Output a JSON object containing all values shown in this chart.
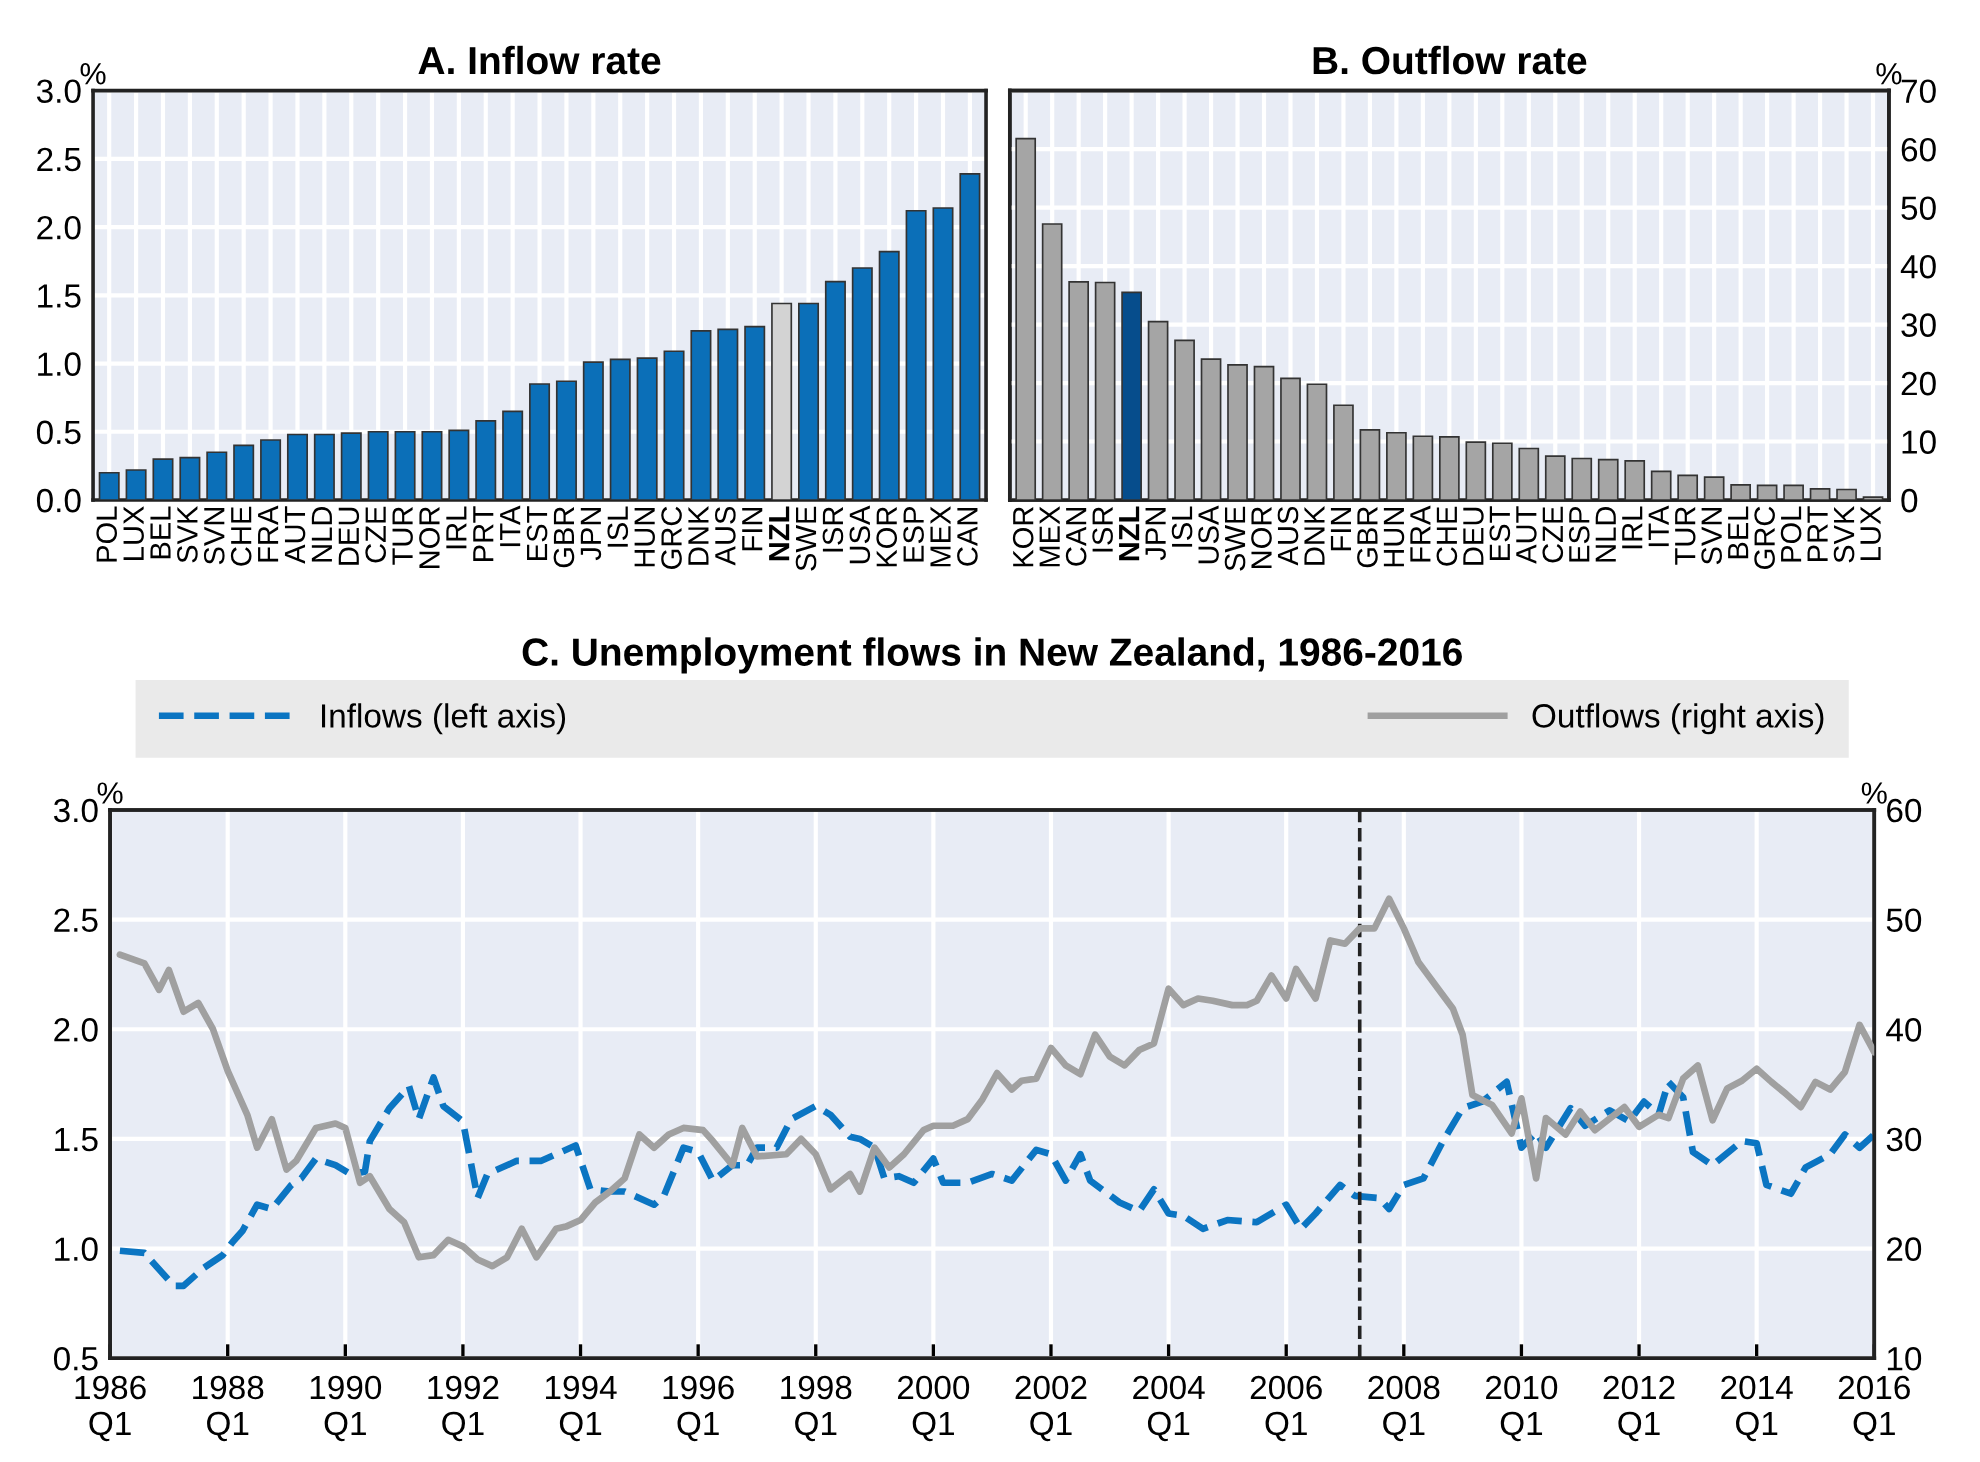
{
  "chart_data": [
    {
      "type": "bar",
      "title": "A. Inflow rate",
      "ylabel": "%",
      "grid": true,
      "categories": [
        "POL",
        "LUX",
        "BEL",
        "SVK",
        "SVN",
        "CHE",
        "FRA",
        "AUT",
        "NLD",
        "DEU",
        "CZE",
        "TUR",
        "NOR",
        "IRL",
        "PRT",
        "ITA",
        "EST",
        "GBR",
        "JPN",
        "ISL",
        "HUN",
        "GRC",
        "DNK",
        "AUS",
        "FIN",
        "NZL",
        "SWE",
        "ISR",
        "USA",
        "KOR",
        "ESP",
        "MEX",
        "CAN"
      ],
      "series": [
        {
          "values": [
            0.2,
            0.22,
            0.3,
            0.31,
            0.35,
            0.4,
            0.44,
            0.48,
            0.48,
            0.49,
            0.5,
            0.5,
            0.5,
            0.51,
            0.58,
            0.65,
            0.85,
            0.87,
            1.01,
            1.03,
            1.04,
            1.09,
            1.24,
            1.25,
            1.27,
            1.44,
            1.44,
            1.6,
            1.7,
            1.82,
            2.12,
            2.14,
            2.39
          ],
          "colors": [
            "#0b6fb8",
            "#0b6fb8",
            "#0b6fb8",
            "#0b6fb8",
            "#0b6fb8",
            "#0b6fb8",
            "#0b6fb8",
            "#0b6fb8",
            "#0b6fb8",
            "#0b6fb8",
            "#0b6fb8",
            "#0b6fb8",
            "#0b6fb8",
            "#0b6fb8",
            "#0b6fb8",
            "#0b6fb8",
            "#0b6fb8",
            "#0b6fb8",
            "#0b6fb8",
            "#0b6fb8",
            "#0b6fb8",
            "#0b6fb8",
            "#0b6fb8",
            "#0b6fb8",
            "#0b6fb8",
            "#d3d3d3",
            "#0b6fb8",
            "#0b6fb8",
            "#0b6fb8",
            "#0b6fb8",
            "#0b6fb8",
            "#0b6fb8",
            "#0b6fb8"
          ]
        }
      ],
      "ylim": [
        0,
        3
      ],
      "yticks": [
        {
          "value": 0,
          "label": "0.0"
        },
        {
          "value": 0.5,
          "label": "0.5"
        },
        {
          "value": 1,
          "label": "1.0"
        },
        {
          "value": 1.5,
          "label": "1.5"
        },
        {
          "value": 2,
          "label": "2.0"
        },
        {
          "value": 2.5,
          "label": "2.5"
        },
        {
          "value": 3,
          "label": "3.0"
        }
      ]
    },
    {
      "type": "bar",
      "title": "B. Outflow rate",
      "y2label": "%",
      "grid": true,
      "categories": [
        "KOR",
        "MEX",
        "CAN",
        "ISR",
        "NZL",
        "JPN",
        "ISL",
        "USA",
        "SWE",
        "NOR",
        "AUS",
        "DNK",
        "FIN",
        "GBR",
        "HUN",
        "FRA",
        "CHE",
        "DEU",
        "EST",
        "AUT",
        "CZE",
        "ESP",
        "NLD",
        "IRL",
        "ITA",
        "TUR",
        "SVN",
        "BEL",
        "GRC",
        "POL",
        "PRT",
        "SVK",
        "LUX"
      ],
      "series": [
        {
          "axis": "y2",
          "values": [
            61.8,
            47.2,
            37.3,
            37.2,
            35.5,
            30.5,
            27.3,
            24.1,
            23.1,
            22.8,
            20.8,
            19.8,
            16.2,
            12.0,
            11.5,
            10.9,
            10.8,
            9.9,
            9.7,
            8.8,
            7.5,
            7.1,
            6.9,
            6.7,
            4.9,
            4.2,
            3.9,
            2.6,
            2.5,
            2.5,
            1.9,
            1.8,
            0.5
          ],
          "colors": [
            "#a5a5a5",
            "#a5a5a5",
            "#a5a5a5",
            "#a5a5a5",
            "#064d8c",
            "#a5a5a5",
            "#a5a5a5",
            "#a5a5a5",
            "#a5a5a5",
            "#a5a5a5",
            "#a5a5a5",
            "#a5a5a5",
            "#a5a5a5",
            "#a5a5a5",
            "#a5a5a5",
            "#a5a5a5",
            "#a5a5a5",
            "#a5a5a5",
            "#a5a5a5",
            "#a5a5a5",
            "#a5a5a5",
            "#a5a5a5",
            "#a5a5a5",
            "#a5a5a5",
            "#a5a5a5",
            "#a5a5a5",
            "#a5a5a5",
            "#a5a5a5",
            "#a5a5a5",
            "#a5a5a5",
            "#a5a5a5",
            "#a5a5a5",
            "#a5a5a5"
          ]
        }
      ],
      "y2lim": [
        0,
        70
      ],
      "y2ticks": [
        0,
        10,
        20,
        30,
        40,
        50,
        60,
        70
      ]
    },
    {
      "type": "line",
      "title": "C. Unemployment flows in New Zealand, 1986-2016",
      "ylabel": "%",
      "y2label": "%",
      "grid": true,
      "legend": "top",
      "series": [
        {
          "name": "Inflows (left axis)",
          "color": "#0b75c2",
          "line_style": "dashed",
          "x": [
            "1986-03",
            "1986-08",
            "1987-02",
            "1987-04",
            "1987-08",
            "1987-12",
            "1988-02",
            "1988-04",
            "1988-07",
            "1988-10",
            "1989-02",
            "1989-04",
            "1989-07",
            "1989-11",
            "1990-02",
            "1990-05",
            "1990-06",
            "1990-10",
            "1991-02",
            "1991-04",
            "1991-07",
            "1991-09",
            "1992-01",
            "1992-04",
            "1992-06",
            "1992-12",
            "1993-05",
            "1993-08",
            "1993-12",
            "1994-03",
            "1994-07",
            "1994-10",
            "1995-04",
            "1995-06",
            "1995-10",
            "1996-01",
            "1996-04",
            "1996-08",
            "1996-11",
            "1997-01",
            "1997-05",
            "1997-08",
            "1998-01",
            "1998-04",
            "1998-08",
            "1998-10",
            "1999-01",
            "1999-03",
            "1999-06",
            "1999-09",
            "2000-01",
            "2000-03",
            "2000-08",
            "2001-01",
            "2001-05",
            "2001-10",
            "2002-01",
            "2002-04",
            "2002-07",
            "2002-09",
            "2003-03",
            "2003-07",
            "2003-10",
            "2004-01",
            "2004-04",
            "2004-08",
            "2005-01",
            "2005-07",
            "2006-01",
            "2006-04",
            "2006-07",
            "2006-12",
            "2007-03",
            "2007-08",
            "2007-10",
            "2008-01",
            "2008-05",
            "2008-09",
            "2009-01",
            "2009-05",
            "2009-10",
            "2010-01",
            "2010-04",
            "2010-06",
            "2010-11",
            "2011-02",
            "2011-07",
            "2011-11",
            "2012-02",
            "2012-05",
            "2012-07",
            "2012-10",
            "2012-12",
            "2013-04",
            "2013-10",
            "2014-01",
            "2014-03",
            "2014-08",
            "2014-11",
            "2015-04",
            "2015-07",
            "2015-10",
            "2016-01"
          ],
          "values": [
            0.99,
            0.98,
            0.83,
            0.83,
            0.91,
            0.97,
            1.03,
            1.08,
            1.2,
            1.18,
            1.29,
            1.32,
            1.41,
            1.38,
            1.34,
            1.35,
            1.49,
            1.64,
            1.74,
            1.59,
            1.78,
            1.65,
            1.58,
            1.23,
            1.34,
            1.4,
            1.4,
            1.43,
            1.47,
            1.27,
            1.26,
            1.26,
            1.2,
            1.24,
            1.46,
            1.44,
            1.31,
            1.38,
            1.38,
            1.46,
            1.46,
            1.59,
            1.65,
            1.61,
            1.51,
            1.5,
            1.46,
            1.32,
            1.33,
            1.3,
            1.41,
            1.3,
            1.3,
            1.34,
            1.31,
            1.45,
            1.43,
            1.31,
            1.43,
            1.31,
            1.21,
            1.17,
            1.27,
            1.16,
            1.15,
            1.09,
            1.13,
            1.12,
            1.2,
            1.09,
            1.16,
            1.29,
            1.24,
            1.23,
            1.18,
            1.29,
            1.32,
            1.49,
            1.64,
            1.67,
            1.76,
            1.46,
            1.53,
            1.46,
            1.64,
            1.56,
            1.63,
            1.58,
            1.67,
            1.61,
            1.76,
            1.69,
            1.44,
            1.38,
            1.49,
            1.48,
            1.29,
            1.25,
            1.37,
            1.43,
            1.52,
            1.46,
            1.52
          ]
        },
        {
          "name": "Outflows (right axis)",
          "color": "#a0a0a0",
          "line_style": "solid",
          "axis": "y2",
          "x": [
            "1986-03",
            "1986-08",
            "1986-11",
            "1987-01",
            "1987-04",
            "1987-07",
            "1987-10",
            "1988-01",
            "1988-05",
            "1988-07",
            "1988-10",
            "1989-01",
            "1989-03",
            "1989-07",
            "1989-11",
            "1990-01",
            "1990-04",
            "1990-06",
            "1990-10",
            "1991-01",
            "1991-04",
            "1991-07",
            "1991-10",
            "1992-01",
            "1992-04",
            "1992-07",
            "1992-10",
            "1993-01",
            "1993-04",
            "1993-08",
            "1993-10",
            "1994-01",
            "1994-04",
            "1994-07",
            "1994-10",
            "1995-01",
            "1995-04",
            "1995-07",
            "1995-10",
            "1996-02",
            "1996-04",
            "1996-08",
            "1996-10",
            "1997-01",
            "1997-07",
            "1997-10",
            "1998-01",
            "1998-04",
            "1998-08",
            "1998-10",
            "1999-01",
            "1999-04",
            "1999-07",
            "1999-11",
            "2000-01",
            "2000-05",
            "2000-08",
            "2000-11",
            "2001-02",
            "2001-05",
            "2001-07",
            "2001-10",
            "2002-01",
            "2002-04",
            "2002-07",
            "2002-10",
            "2003-01",
            "2003-04",
            "2003-07",
            "2003-10",
            "2004-01",
            "2004-04",
            "2004-07",
            "2004-10",
            "2005-02",
            "2005-05",
            "2005-07",
            "2005-10",
            "2006-01",
            "2006-03",
            "2006-07",
            "2006-10",
            "2007-01",
            "2007-04",
            "2007-07",
            "2007-10",
            "2008-01",
            "2008-04",
            "2008-08",
            "2008-11",
            "2009-01",
            "2009-03",
            "2009-07",
            "2009-11",
            "2010-01",
            "2010-04",
            "2010-06",
            "2010-10",
            "2011-01",
            "2011-04",
            "2011-10",
            "2012-01",
            "2012-05",
            "2012-07",
            "2012-10",
            "2013-01",
            "2013-04",
            "2013-07",
            "2013-10",
            "2014-01",
            "2014-04",
            "2014-07",
            "2014-10",
            "2015-01",
            "2015-04",
            "2015-07",
            "2015-10",
            "2016-01"
          ],
          "values": [
            46.8,
            46.0,
            43.6,
            45.4,
            41.6,
            42.4,
            40.0,
            36.2,
            32.2,
            29.2,
            31.8,
            27.2,
            28.0,
            31.0,
            31.4,
            31.0,
            26.0,
            26.6,
            23.6,
            22.4,
            19.2,
            19.4,
            20.8,
            20.2,
            19.0,
            18.4,
            19.2,
            21.8,
            19.2,
            21.8,
            22.0,
            22.6,
            24.2,
            25.2,
            26.4,
            30.4,
            29.2,
            30.4,
            31.0,
            30.8,
            29.8,
            27.6,
            31.0,
            28.4,
            28.6,
            30.0,
            28.6,
            25.4,
            26.8,
            25.2,
            29.2,
            27.4,
            28.6,
            30.8,
            31.2,
            31.2,
            31.8,
            33.6,
            36.0,
            34.5,
            35.3,
            35.5,
            38.3,
            36.7,
            35.9,
            39.5,
            37.5,
            36.7,
            38.1,
            38.7,
            43.7,
            42.2,
            42.8,
            42.6,
            42.2,
            42.2,
            42.6,
            44.9,
            42.8,
            45.5,
            42.8,
            48.1,
            47.8,
            49.2,
            49.2,
            51.9,
            49.2,
            46.1,
            43.7,
            41.9,
            39.5,
            34.0,
            33.1,
            30.5,
            33.7,
            26.4,
            31.9,
            30.4,
            32.5,
            30.8,
            32.9,
            31.1,
            32.2,
            31.9,
            35.5,
            36.7,
            31.7,
            34.6,
            35.3,
            36.4,
            35.2,
            34.1,
            32.9,
            35.2,
            34.5,
            36.1,
            40.4,
            37.9
          ]
        }
      ],
      "xlim": [
        "1986-01",
        "2016-01"
      ],
      "xticks": [
        {
          "value": "1986-01",
          "label": "1986\nQ1"
        },
        {
          "value": "1988-01",
          "label": "1988\nQ1"
        },
        {
          "value": "1990-01",
          "label": "1990\nQ1"
        },
        {
          "value": "1992-01",
          "label": "1992\nQ1"
        },
        {
          "value": "1994-01",
          "label": "1994\nQ1"
        },
        {
          "value": "1996-01",
          "label": "1996\nQ1"
        },
        {
          "value": "1998-01",
          "label": "1998\nQ1"
        },
        {
          "value": "2000-01",
          "label": "2000\nQ1"
        },
        {
          "value": "2002-01",
          "label": "2002\nQ1"
        },
        {
          "value": "2004-01",
          "label": "2004\nQ1"
        },
        {
          "value": "2006-01",
          "label": "2006\nQ1"
        },
        {
          "value": "2008-01",
          "label": "2008\nQ1"
        },
        {
          "value": "2010-01",
          "label": "2010\nQ1"
        },
        {
          "value": "2012-01",
          "label": "2012\nQ1"
        },
        {
          "value": "2014-01",
          "label": "2014\nQ1"
        },
        {
          "value": "2016-01",
          "label": "2016\nQ1"
        }
      ],
      "ylim": [
        0.5,
        3
      ],
      "yticks": [
        {
          "value": 0.5,
          "label": "0.5"
        },
        {
          "value": 1,
          "label": "1.0"
        },
        {
          "value": 1.5,
          "label": "1.5"
        },
        {
          "value": 2,
          "label": "2.0"
        },
        {
          "value": 2.5,
          "label": "2.5"
        },
        {
          "value": 3,
          "label": "3.0"
        }
      ],
      "y2lim": [
        10,
        60
      ],
      "y2ticks": [
        10,
        20,
        30,
        40,
        50,
        60
      ],
      "ref_lines": [
        {
          "axis": "x",
          "value": "2007-04",
          "color": "#222222",
          "line_style": "dashed"
        }
      ]
    }
  ]
}
